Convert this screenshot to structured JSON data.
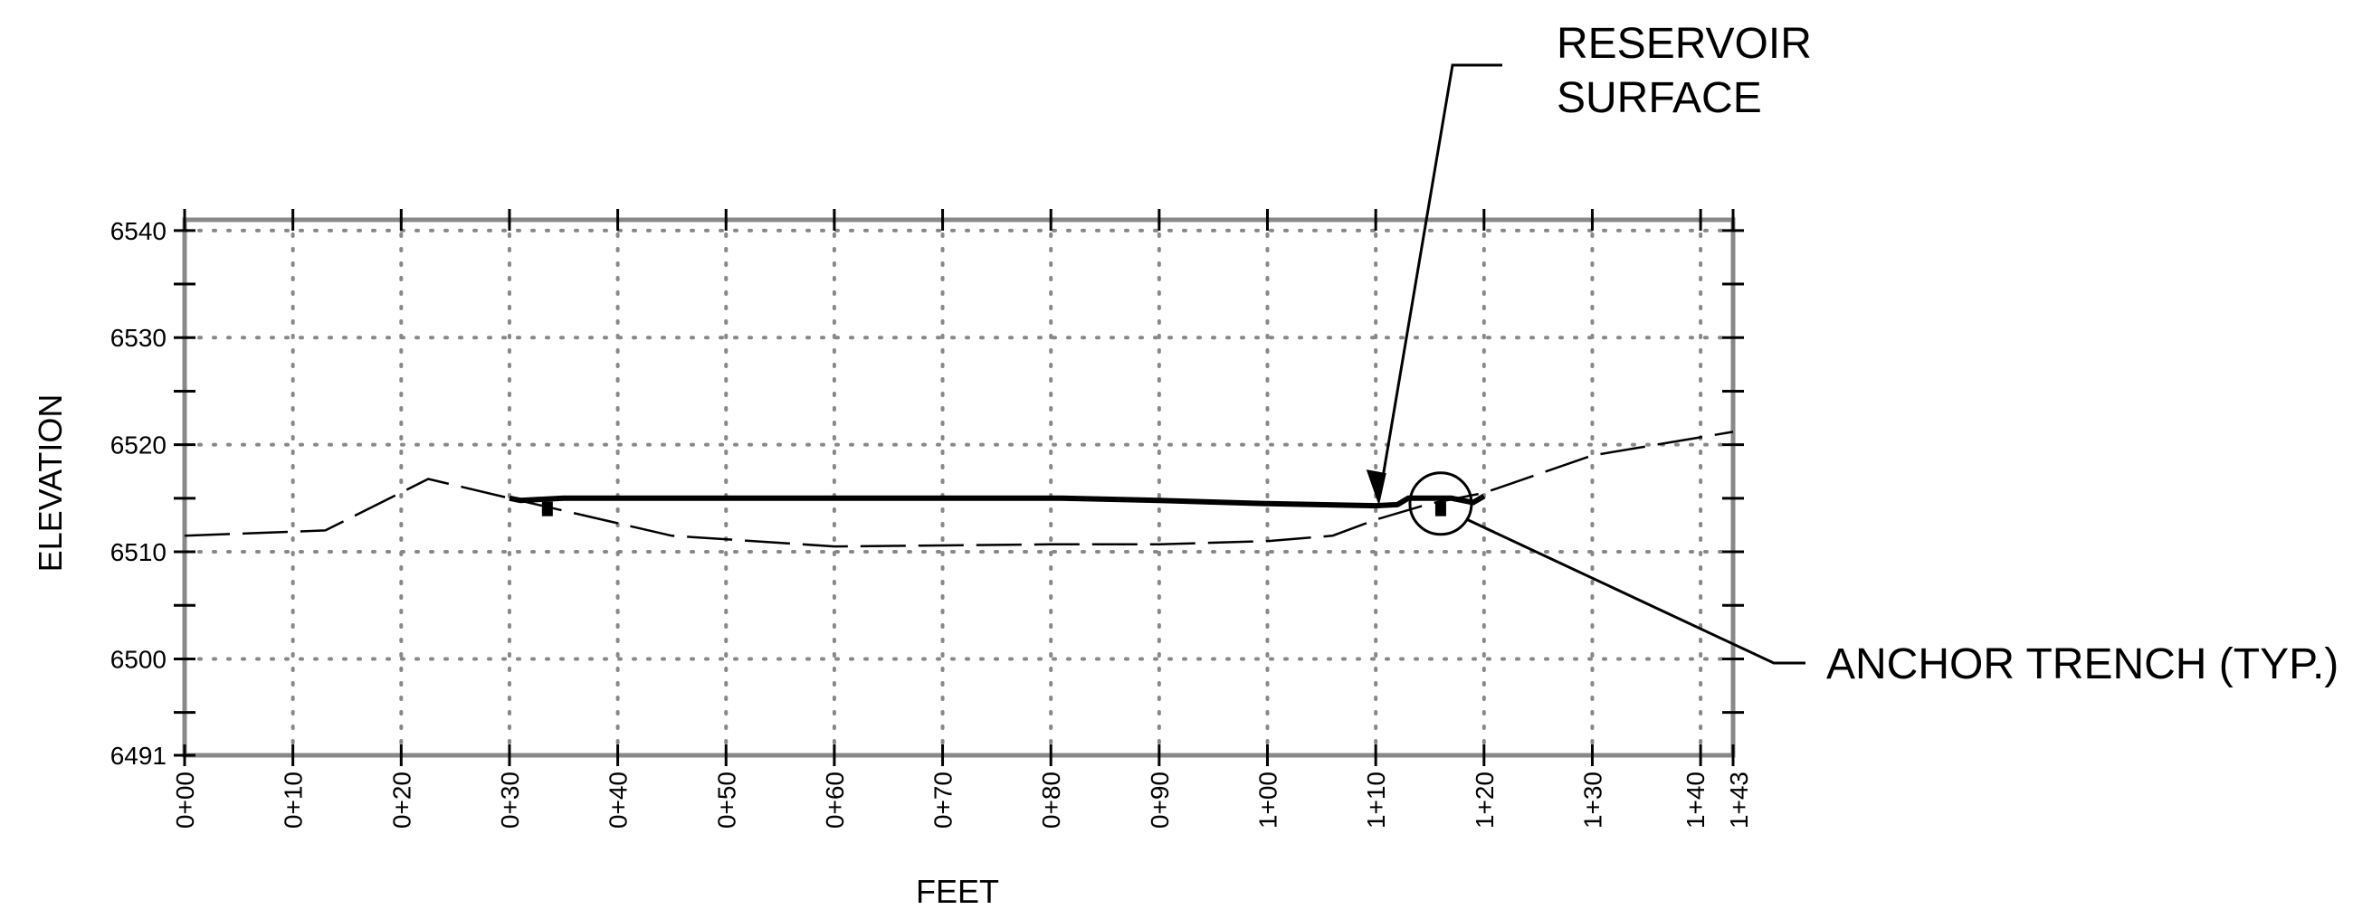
{
  "chart_data": {
    "type": "line",
    "title": "",
    "xlabel": "FEET",
    "ylabel": "ELEVATION",
    "grid": true,
    "xlim": [
      0,
      143
    ],
    "ylim": [
      6491,
      6541
    ],
    "x_ticks": [
      {
        "value": 0,
        "label": "0+00"
      },
      {
        "value": 10,
        "label": "0+10"
      },
      {
        "value": 20,
        "label": "0+20"
      },
      {
        "value": 30,
        "label": "0+30"
      },
      {
        "value": 40,
        "label": "0+40"
      },
      {
        "value": 50,
        "label": "0+50"
      },
      {
        "value": 60,
        "label": "0+60"
      },
      {
        "value": 70,
        "label": "0+70"
      },
      {
        "value": 80,
        "label": "0+80"
      },
      {
        "value": 90,
        "label": "0+90"
      },
      {
        "value": 100,
        "label": "1+00"
      },
      {
        "value": 110,
        "label": "1+10"
      },
      {
        "value": 120,
        "label": "1+20"
      },
      {
        "value": 130,
        "label": "1+30"
      },
      {
        "value": 140,
        "label": "1+40"
      },
      {
        "value": 143,
        "label": "1+43"
      }
    ],
    "y_ticks": [
      {
        "value": 6491,
        "label": "6491"
      },
      {
        "value": 6500,
        "label": "6500"
      },
      {
        "value": 6510,
        "label": "6510"
      },
      {
        "value": 6520,
        "label": "6520"
      },
      {
        "value": 6530,
        "label": "6530"
      },
      {
        "value": 6540,
        "label": "6540"
      }
    ],
    "series": [
      {
        "style": "dashed",
        "x": [
          0,
          13,
          22.5,
          30,
          45,
          60,
          80,
          90,
          100,
          106,
          110,
          115,
          120,
          130,
          143
        ],
        "y": [
          6511.5,
          6512,
          6516.8,
          6515,
          6511.5,
          6510.5,
          6510.7,
          6510.7,
          6511,
          6511.5,
          6513,
          6514.5,
          6515.5,
          6519,
          6521.2
        ]
      },
      {
        "style": "solid",
        "x": [
          30,
          31,
          35,
          50,
          81,
          90,
          100,
          110,
          112,
          113,
          117,
          119,
          120
        ],
        "y": [
          6515,
          6514.8,
          6515,
          6515,
          6515,
          6514.8,
          6514.5,
          6514.3,
          6514.4,
          6515,
          6515,
          6514.6,
          6515.2
        ]
      }
    ],
    "markers": [
      {
        "x": 33.5,
        "y": 6514
      },
      {
        "x": 116,
        "y": 6514
      }
    ],
    "annotations": [
      {
        "lines": [
          "RESERVOIR",
          "SURFACE"
        ],
        "target_x": 110.3,
        "target_y": 6514.3
      },
      {
        "lines": [
          "ANCHOR TRENCH (TYP.)"
        ],
        "target_x": 116,
        "target_y": 6514.5,
        "circled": true
      }
    ]
  }
}
